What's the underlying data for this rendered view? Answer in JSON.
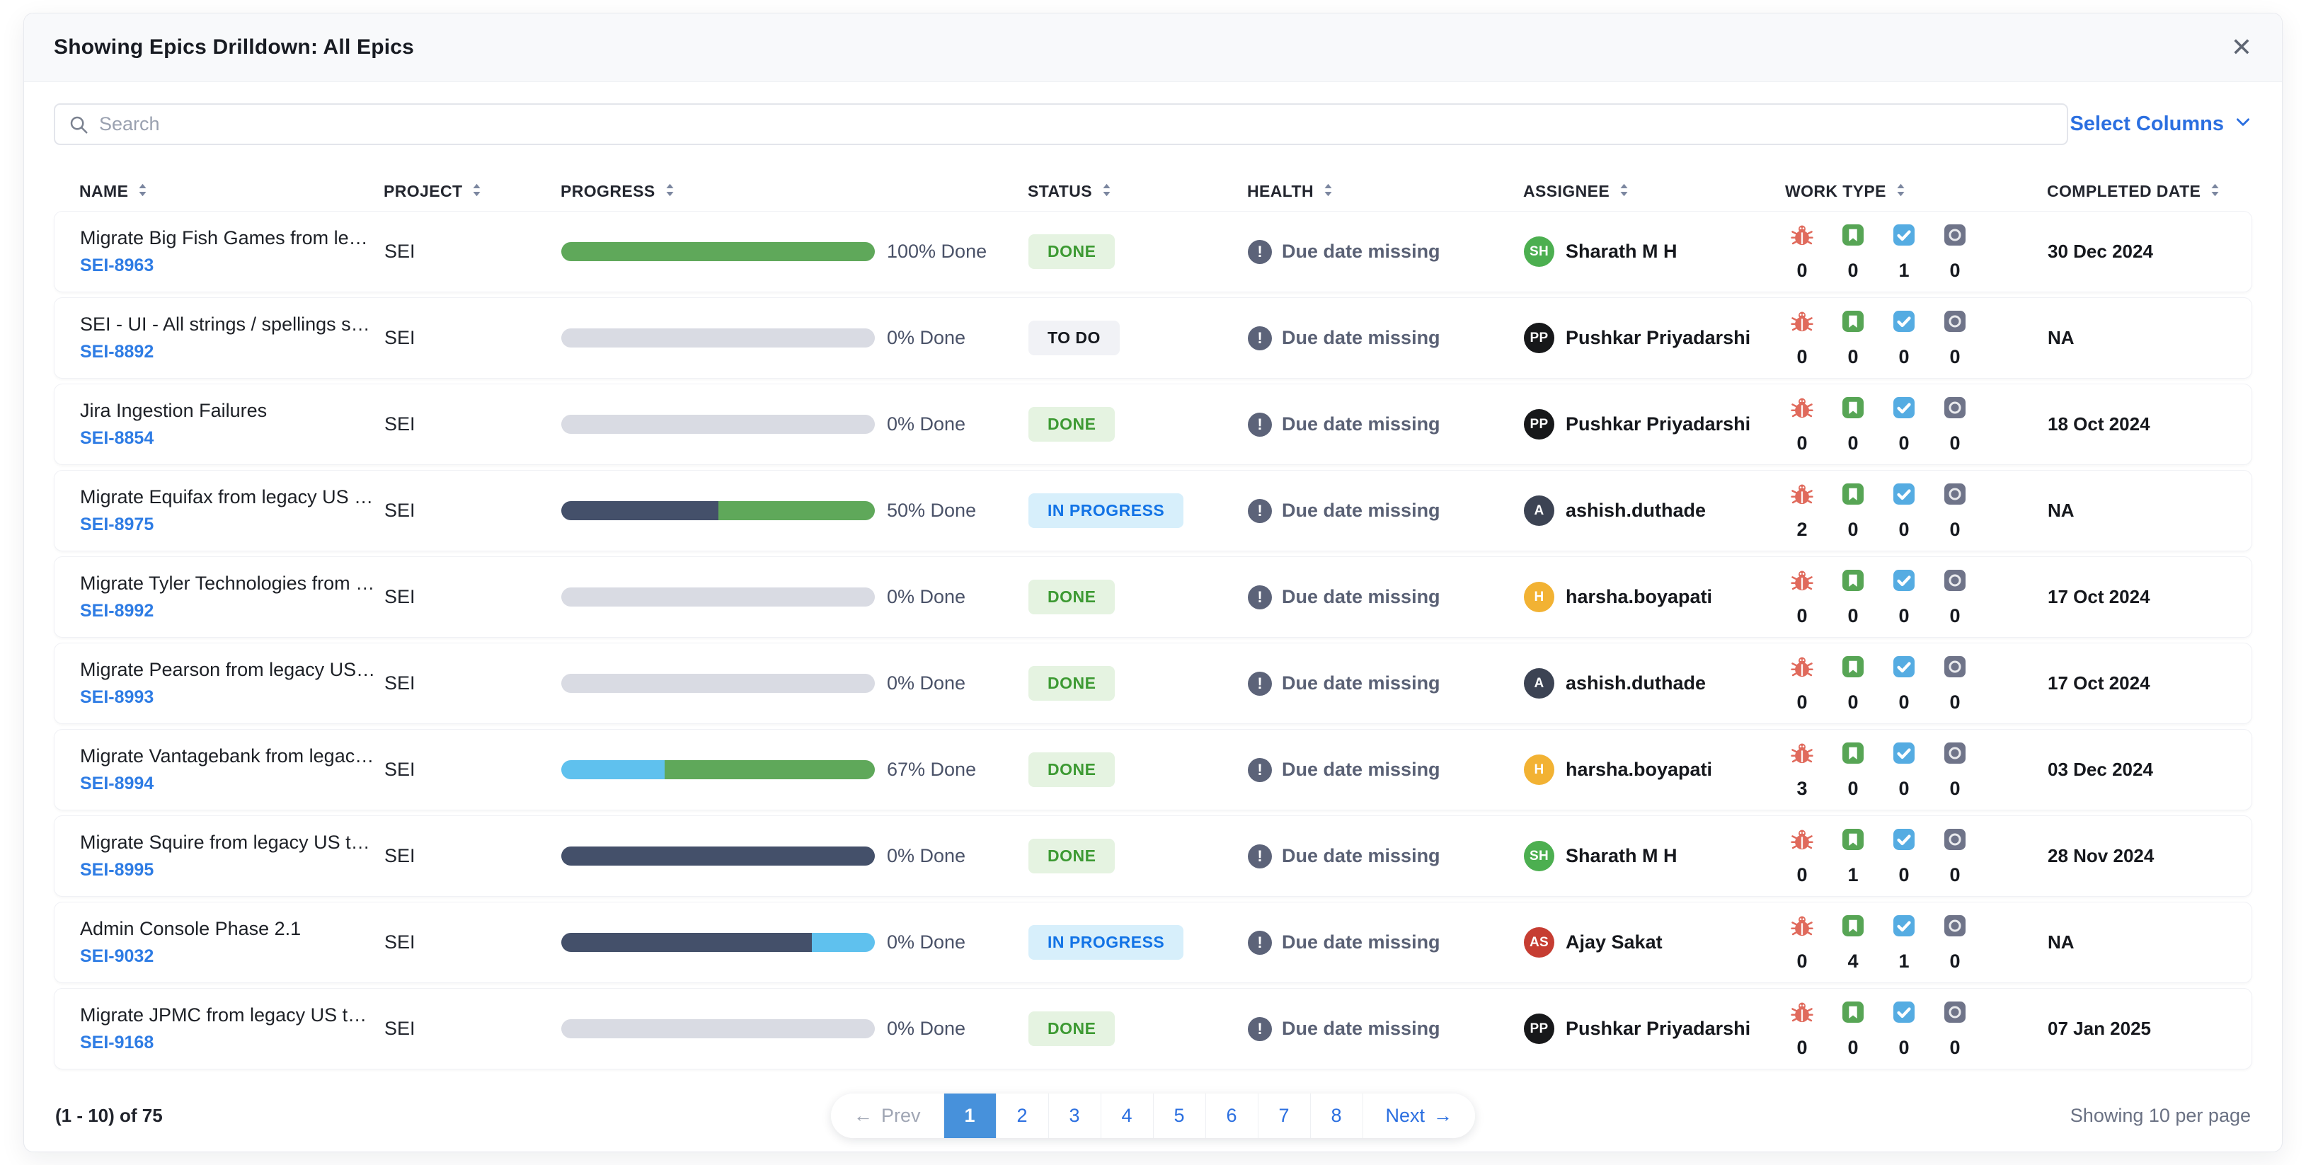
{
  "header": {
    "title": "Showing Epics Drilldown: All Epics",
    "close_glyph": "✕"
  },
  "toolbar": {
    "search_placeholder": "Search",
    "select_columns_label": "Select Columns"
  },
  "columns": [
    {
      "key": "name",
      "label": "NAME"
    },
    {
      "key": "project",
      "label": "PROJECT"
    },
    {
      "key": "progress",
      "label": "PROGRESS"
    },
    {
      "key": "status",
      "label": "STATUS"
    },
    {
      "key": "health",
      "label": "HEALTH"
    },
    {
      "key": "assignee",
      "label": "ASSIGNEE"
    },
    {
      "key": "worktype",
      "label": "WORK TYPE"
    },
    {
      "key": "completed",
      "label": "COMPLETED DATE"
    }
  ],
  "palette": {
    "green": "#5fa85a",
    "gray": "#d9dbe3",
    "navy": "#44506a",
    "lightblue": "#5fc1ee"
  },
  "status_styles": {
    "done": {
      "bg": "#e5f3e1",
      "fg": "#3d9a33"
    },
    "todo": {
      "bg": "#f1f2f6",
      "fg": "#15181e"
    },
    "in_progress": {
      "bg": "#d7effb",
      "fg": "#1273e6"
    }
  },
  "icons": {
    "health_exclamation": "!"
  },
  "work_types": [
    "bug-icon",
    "story-icon",
    "task-icon",
    "other-icon"
  ],
  "rows": [
    {
      "name": "Migrate Big Fish Games from legacy US to SEI ...",
      "key": "SEI-8963",
      "project": "SEI",
      "progress": {
        "label": "100% Done",
        "segments": [
          {
            "color": "green",
            "pct": 100
          }
        ]
      },
      "status": {
        "label": "DONE",
        "type": "done"
      },
      "health": "Due date missing",
      "assignee": {
        "initials": "SH",
        "color": "#4caf50",
        "name": "Sharath M H"
      },
      "work_counts": [
        "0",
        "0",
        "1",
        "0"
      ],
      "completed": "30 Dec 2024"
    },
    {
      "name": "SEI - UI - All strings / spellings should be in A...",
      "key": "SEI-8892",
      "project": "SEI",
      "progress": {
        "label": "0% Done",
        "segments": [
          {
            "color": "gray",
            "pct": 100
          }
        ]
      },
      "status": {
        "label": "TO DO",
        "type": "todo"
      },
      "health": "Due date missing",
      "assignee": {
        "initials": "PP",
        "color": "#17181a",
        "name": "Pushkar Priyadarshi"
      },
      "work_counts": [
        "0",
        "0",
        "0",
        "0"
      ],
      "completed": "NA"
    },
    {
      "name": "Jira Ingestion Failures",
      "key": "SEI-8854",
      "project": "SEI",
      "progress": {
        "label": "0% Done",
        "segments": [
          {
            "color": "gray",
            "pct": 100
          }
        ]
      },
      "status": {
        "label": "DONE",
        "type": "done"
      },
      "health": "Due date missing",
      "assignee": {
        "initials": "PP",
        "color": "#17181a",
        "name": "Pushkar Priyadarshi"
      },
      "work_counts": [
        "0",
        "0",
        "0",
        "0"
      ],
      "completed": "18 Oct 2024"
    },
    {
      "name": "Migrate Equifax from legacy US to SEI on Harn...",
      "key": "SEI-8975",
      "project": "SEI",
      "progress": {
        "label": "50% Done",
        "segments": [
          {
            "color": "navy",
            "pct": 50
          },
          {
            "color": "green",
            "pct": 50
          }
        ]
      },
      "status": {
        "label": "IN PROGRESS",
        "type": "in_progress"
      },
      "health": "Due date missing",
      "assignee": {
        "initials": "A",
        "color": "#3c4353",
        "name": "ashish.duthade"
      },
      "work_counts": [
        "2",
        "0",
        "0",
        "0"
      ],
      "completed": "NA"
    },
    {
      "name": "Migrate Tyler Technologies from legacy US to ...",
      "key": "SEI-8992",
      "project": "SEI",
      "progress": {
        "label": "0% Done",
        "segments": [
          {
            "color": "gray",
            "pct": 100
          }
        ]
      },
      "status": {
        "label": "DONE",
        "type": "done"
      },
      "health": "Due date missing",
      "assignee": {
        "initials": "H",
        "color": "#f2b233",
        "name": "harsha.boyapati"
      },
      "work_counts": [
        "0",
        "0",
        "0",
        "0"
      ],
      "completed": "17 Oct 2024"
    },
    {
      "name": "Migrate Pearson from legacy US to SEI on Har...",
      "key": "SEI-8993",
      "project": "SEI",
      "progress": {
        "label": "0% Done",
        "segments": [
          {
            "color": "gray",
            "pct": 100
          }
        ]
      },
      "status": {
        "label": "DONE",
        "type": "done"
      },
      "health": "Due date missing",
      "assignee": {
        "initials": "A",
        "color": "#3c4353",
        "name": "ashish.duthade"
      },
      "work_counts": [
        "0",
        "0",
        "0",
        "0"
      ],
      "completed": "17 Oct 2024"
    },
    {
      "name": "Migrate Vantagebank from legacy to SEI on Ha...",
      "key": "SEI-8994",
      "project": "SEI",
      "progress": {
        "label": "67% Done",
        "segments": [
          {
            "color": "lightblue",
            "pct": 33
          },
          {
            "color": "green",
            "pct": 67
          }
        ]
      },
      "status": {
        "label": "DONE",
        "type": "done"
      },
      "health": "Due date missing",
      "assignee": {
        "initials": "H",
        "color": "#f2b233",
        "name": "harsha.boyapati"
      },
      "work_counts": [
        "3",
        "0",
        "0",
        "0"
      ],
      "completed": "03 Dec 2024"
    },
    {
      "name": "Migrate Squire from legacy US to SEI on Harne...",
      "key": "SEI-8995",
      "project": "SEI",
      "progress": {
        "label": "0% Done",
        "segments": [
          {
            "color": "navy",
            "pct": 100
          }
        ]
      },
      "status": {
        "label": "DONE",
        "type": "done"
      },
      "health": "Due date missing",
      "assignee": {
        "initials": "SH",
        "color": "#4caf50",
        "name": "Sharath M H"
      },
      "work_counts": [
        "0",
        "1",
        "0",
        "0"
      ],
      "completed": "28 Nov 2024"
    },
    {
      "name": "Admin Console Phase 2.1",
      "key": "SEI-9032",
      "project": "SEI",
      "progress": {
        "label": "0% Done",
        "segments": [
          {
            "color": "navy",
            "pct": 80
          },
          {
            "color": "lightblue",
            "pct": 20
          }
        ]
      },
      "status": {
        "label": "IN PROGRESS",
        "type": "in_progress"
      },
      "health": "Due date missing",
      "assignee": {
        "initials": "AS",
        "color": "#c63d32",
        "name": "Ajay Sakat"
      },
      "work_counts": [
        "0",
        "4",
        "1",
        "0"
      ],
      "completed": "NA"
    },
    {
      "name": "Migrate JPMC from legacy US to SEI on Harne...",
      "key": "SEI-9168",
      "project": "SEI",
      "progress": {
        "label": "0% Done",
        "segments": [
          {
            "color": "gray",
            "pct": 100
          }
        ]
      },
      "status": {
        "label": "DONE",
        "type": "done"
      },
      "health": "Due date missing",
      "assignee": {
        "initials": "PP",
        "color": "#17181a",
        "name": "Pushkar Priyadarshi"
      },
      "work_counts": [
        "0",
        "0",
        "0",
        "0"
      ],
      "completed": "07 Jan 2025"
    }
  ],
  "footer": {
    "range": "(1 - 10) of 75",
    "page_size_label": "Showing 10 per page",
    "pagination": {
      "prev_arrow": "←",
      "prev_label": "Prev",
      "next_label": "Next",
      "next_arrow": "→",
      "pages": [
        "1",
        "2",
        "3",
        "4",
        "5",
        "6",
        "7",
        "8"
      ],
      "active_page": "1"
    }
  }
}
